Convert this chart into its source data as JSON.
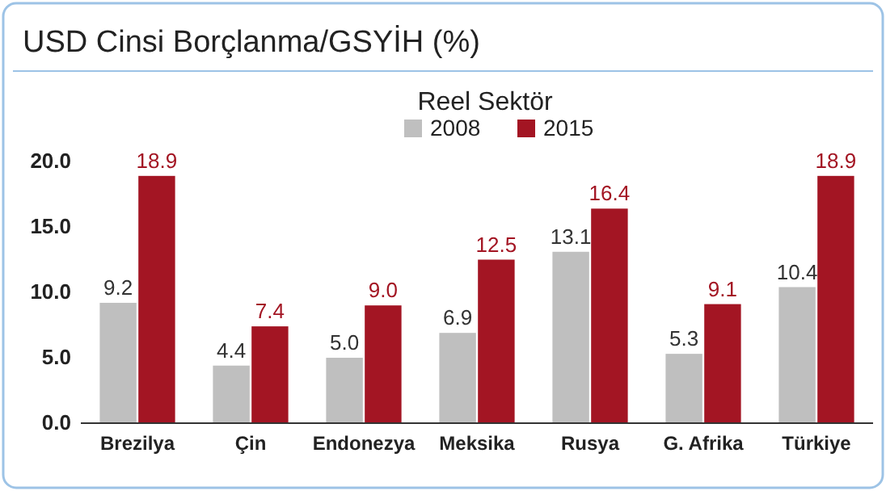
{
  "chart_data": {
    "type": "bar",
    "title": "USD Cinsi Borçlanma/GSYİH (%)",
    "subtitle": "Reel Sektör",
    "categories": [
      "Brezilya",
      "Çin",
      "Endonezya",
      "Meksika",
      "Rusya",
      "G. Afrika",
      "Türkiye"
    ],
    "series": [
      {
        "name": "2008",
        "color": "#bfbfbf",
        "values": [
          9.2,
          4.4,
          5.0,
          6.9,
          13.1,
          5.3,
          10.4
        ],
        "value_labels": [
          "9.2",
          "4.4",
          "5.0",
          "6.9",
          "13.1",
          "5.3",
          "10.4"
        ]
      },
      {
        "name": "2015",
        "color": "#a31523",
        "values": [
          18.9,
          7.4,
          9.0,
          12.5,
          16.4,
          9.1,
          18.9
        ],
        "value_labels": [
          "18.9",
          "7.4",
          "9.0",
          "12.5",
          "16.4",
          "9.1",
          "18.9"
        ]
      }
    ],
    "ylim": [
      0,
      20
    ],
    "yticks": [
      {
        "value": 0,
        "label": "0.0"
      },
      {
        "value": 5,
        "label": "5.0"
      },
      {
        "value": 10,
        "label": "10.0"
      },
      {
        "value": 15,
        "label": "15.0"
      },
      {
        "value": 20,
        "label": "20.0"
      }
    ],
    "grid": false,
    "legend": "top"
  }
}
